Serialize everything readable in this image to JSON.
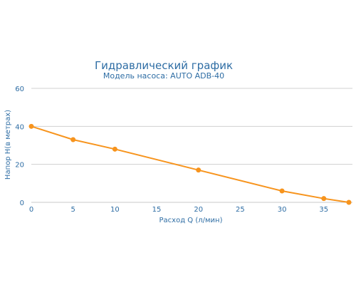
{
  "chart_data": {
    "type": "line",
    "title": "Гидравлический график",
    "subtitle": "Модель насоса: AUTO ADB-40",
    "xlabel": "Расход Q (л/мин)",
    "ylabel": "Напор H(в метрах)",
    "xlim": [
      0,
      38
    ],
    "ylim": [
      0,
      60
    ],
    "xticks": [
      0,
      5,
      10,
      15,
      20,
      25,
      30,
      35
    ],
    "yticks": [
      0,
      20,
      40,
      60
    ],
    "grid": "horizontal",
    "legend": "none",
    "series": [
      {
        "color": "#f7941d",
        "points": [
          {
            "x": 0,
            "y": 40
          },
          {
            "x": 5,
            "y": 33
          },
          {
            "x": 10,
            "y": 28
          },
          {
            "x": 20,
            "y": 17
          },
          {
            "x": 30,
            "y": 6
          },
          {
            "x": 35,
            "y": 2
          },
          {
            "x": 38,
            "y": 0
          }
        ]
      }
    ]
  }
}
